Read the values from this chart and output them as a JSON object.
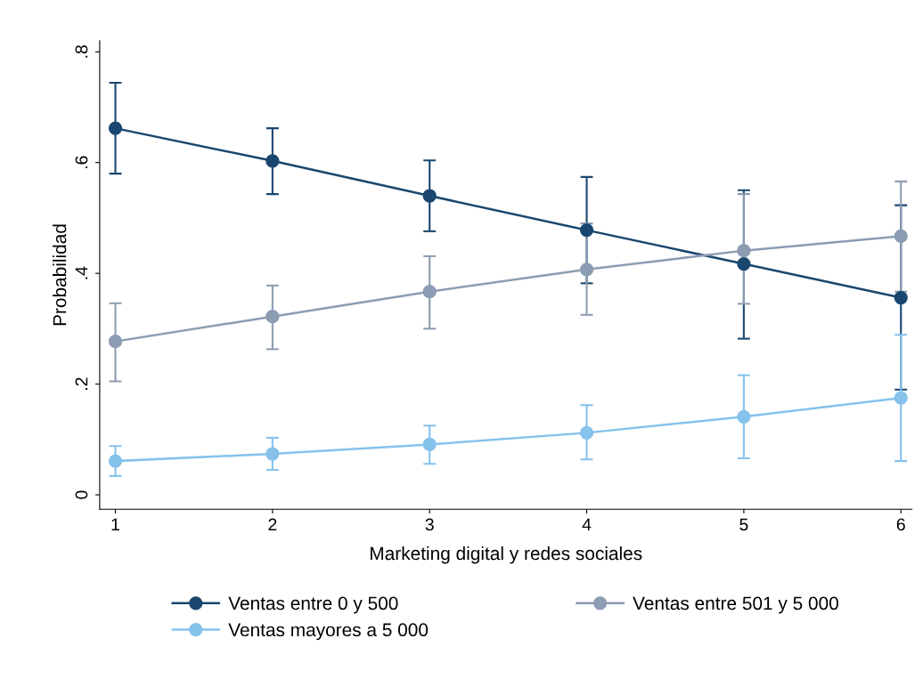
{
  "chart_data": {
    "type": "line",
    "xlabel": "Marketing digital y redes sociales",
    "ylabel": "Probabilidad",
    "x": [
      1,
      2,
      3,
      4,
      5,
      6
    ],
    "series": [
      {
        "name": "Ventas entre 0 y 500",
        "color": "#1a476f",
        "values": [
          0.662,
          0.603,
          0.54,
          0.478,
          0.417,
          0.356
        ],
        "errors": [
          [
            0.58,
            0.744
          ],
          [
            0.543,
            0.662
          ],
          [
            0.476,
            0.604
          ],
          [
            0.382,
            0.574
          ],
          [
            0.282,
            0.55
          ],
          [
            0.19,
            0.523
          ]
        ]
      },
      {
        "name": "Ventas entre 501 y 5 000",
        "color": "#8c9cb2",
        "values": [
          0.277,
          0.322,
          0.367,
          0.407,
          0.441,
          0.467
        ],
        "errors": [
          [
            0.205,
            0.346
          ],
          [
            0.263,
            0.378
          ],
          [
            0.3,
            0.431
          ],
          [
            0.325,
            0.49
          ],
          [
            0.345,
            0.543
          ],
          [
            0.367,
            0.566
          ]
        ]
      },
      {
        "name": "Ventas mayores a 5 000",
        "color": "#85c2ec",
        "values": [
          0.061,
          0.074,
          0.091,
          0.112,
          0.141,
          0.175
        ],
        "errors": [
          [
            0.034,
            0.088
          ],
          [
            0.045,
            0.103
          ],
          [
            0.056,
            0.125
          ],
          [
            0.064,
            0.162
          ],
          [
            0.066,
            0.216
          ],
          [
            0.061,
            0.289
          ]
        ]
      }
    ],
    "xlim": [
      0.9,
      6.07
    ],
    "xticks": [
      1,
      2,
      3,
      4,
      5,
      6
    ],
    "ylim": [
      -0.026,
      0.82
    ],
    "yticks": [
      {
        "value": 0,
        "label": "0"
      },
      {
        "value": 0.2,
        "label": ".2"
      },
      {
        "value": 0.4,
        "label": ".4"
      },
      {
        "value": 0.6,
        "label": ".6"
      },
      {
        "value": 0.8,
        "label": ".8"
      }
    ],
    "marker": "circle",
    "line_style": "solid",
    "grid": false,
    "legend": "bottom"
  }
}
